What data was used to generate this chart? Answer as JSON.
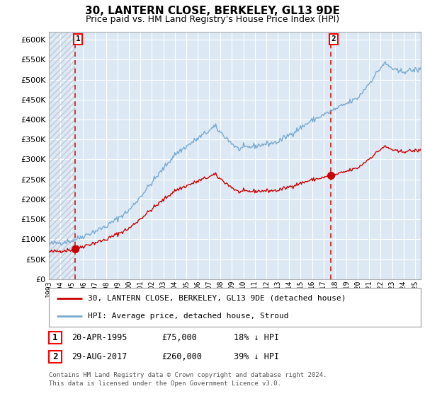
{
  "title": "30, LANTERN CLOSE, BERKELEY, GL13 9DE",
  "subtitle": "Price paid vs. HM Land Registry's House Price Index (HPI)",
  "ylim": [
    0,
    620000
  ],
  "yticks": [
    0,
    50000,
    100000,
    150000,
    200000,
    250000,
    300000,
    350000,
    400000,
    450000,
    500000,
    550000,
    600000
  ],
  "xlim_start": 1993.0,
  "xlim_end": 2025.5,
  "purchase1_date": 1995.3,
  "purchase1_price": 75000,
  "purchase2_date": 2017.65,
  "purchase2_price": 260000,
  "hpi_line_color": "#7aaad0",
  "price_line_color": "#cc0000",
  "bg_color": "#dce9f5",
  "hatch_color": "#c0c8d5",
  "grid_color": "#ffffff",
  "legend_house": "30, LANTERN CLOSE, BERKELEY, GL13 9DE (detached house)",
  "legend_hpi": "HPI: Average price, detached house, Stroud",
  "footnote1": "Contains HM Land Registry data © Crown copyright and database right 2024.",
  "footnote2": "This data is licensed under the Open Government Licence v3.0.",
  "table_rows": [
    [
      "1",
      "20-APR-1995",
      "£75,000",
      "18% ↓ HPI"
    ],
    [
      "2",
      "29-AUG-2017",
      "£260,000",
      "39% ↓ HPI"
    ]
  ]
}
